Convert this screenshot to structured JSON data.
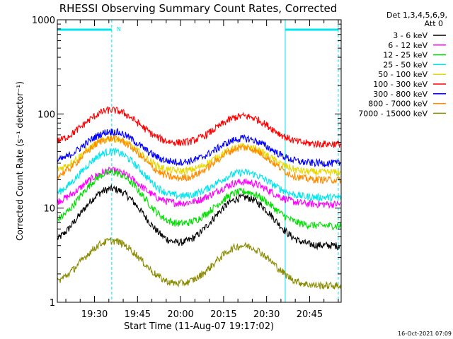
{
  "chart_data": {
    "type": "line",
    "title": "RHESSI Observing Summary Count Rates, Corrected",
    "xlabel": "Start Time (11-Aug-07 19:17:02)",
    "ylabel": "Corrected Count Rate (s⁻¹ detector⁻¹)",
    "y_scale": "log",
    "ylim": [
      1,
      1000
    ],
    "xlim": [
      "19:17:02",
      "20:56:00"
    ],
    "y_ticks": [
      {
        "v": 1,
        "label": "1"
      },
      {
        "v": 10,
        "label": "10"
      },
      {
        "v": 100,
        "label": "100"
      },
      {
        "v": 1000,
        "label": "1000"
      }
    ],
    "x_ticks": [
      {
        "t": "19:30",
        "label": "19:30"
      },
      {
        "t": "19:45",
        "label": "19:45"
      },
      {
        "t": "20:00",
        "label": "20:00"
      },
      {
        "t": "20:15",
        "label": "20:15"
      },
      {
        "t": "20:30",
        "label": "20:30"
      },
      {
        "t": "20:45",
        "label": "20:45"
      }
    ],
    "legend_header": [
      "Det 1,3,4,5,6,9,",
      "Att 0"
    ],
    "legend_placement": "right",
    "night_marker_label": "N",
    "spacecraft_night": [
      {
        "start": "19:17:02",
        "end": "19:36:00"
      },
      {
        "start": "20:36:30",
        "end": "20:55:00"
      }
    ],
    "markers_color": "#00e5ee",
    "peak_times": [
      "19:36",
      "20:22"
    ],
    "series": [
      {
        "name": "3 - 6 keV",
        "color": "#000000",
        "base": 4.0,
        "peak1": 16,
        "peak2": 13
      },
      {
        "name": "6 - 12 keV",
        "color": "#ff00ff",
        "base": 11,
        "peak1": 25,
        "peak2": 19
      },
      {
        "name": "12 - 25 keV",
        "color": "#00e000",
        "base": 6.5,
        "peak1": 24,
        "peak2": 15
      },
      {
        "name": "25 - 50 keV",
        "color": "#00e5ee",
        "base": 13,
        "peak1": 40,
        "peak2": 24
      },
      {
        "name": "50 - 100 keV",
        "color": "#e8d800",
        "base": 24,
        "peak1": 55,
        "peak2": 45
      },
      {
        "name": "100 - 300 keV",
        "color": "#ff0000",
        "base": 48,
        "peak1": 110,
        "peak2": 95
      },
      {
        "name": "300 - 800 keV",
        "color": "#0000ff",
        "base": 30,
        "peak1": 65,
        "peak2": 55
      },
      {
        "name": "800 - 7000 keV",
        "color": "#ff8c00",
        "base": 20,
        "peak1": 55,
        "peak2": 44
      },
      {
        "name": "7000 - 15000 keV",
        "color": "#8b8b00",
        "base": 1.5,
        "peak1": 4.5,
        "peak2": 4
      }
    ],
    "footer_date": "16-Oct-2021 07:09"
  }
}
